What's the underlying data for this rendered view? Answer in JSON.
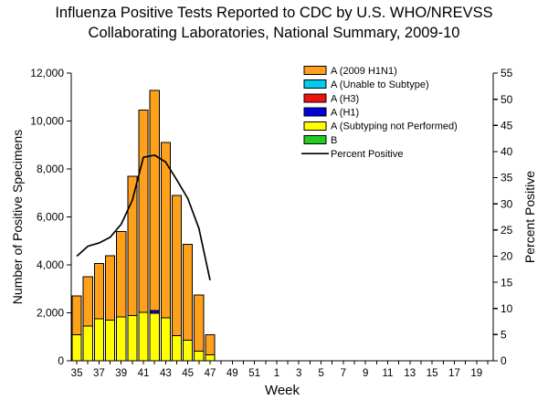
{
  "title_line1": "Influenza Positive Tests Reported to CDC by U.S. WHO/NREVSS",
  "title_line2": "Collaborating Laboratories, National Summary, 2009-10",
  "chart_data": {
    "type": "bar",
    "subtype": "stacked-bars-with-dual-axis-line",
    "categories": [
      "35",
      "36",
      "37",
      "38",
      "39",
      "40",
      "41",
      "42",
      "43",
      "44",
      "45",
      "46",
      "47",
      "48",
      "49",
      "50",
      "51",
      "52",
      "1",
      "2",
      "3",
      "4",
      "5",
      "6",
      "7",
      "8",
      "9",
      "10",
      "11",
      "12",
      "13",
      "14",
      "15",
      "16",
      "17",
      "18",
      "19",
      "20"
    ],
    "x_axis_label": "Week",
    "y_left": {
      "label": "Number of Positive Specimens",
      "min": 0,
      "max": 12000,
      "ticks": [
        "0",
        "2,000",
        "4,000",
        "6,000",
        "8,000",
        "10,000",
        "12,000"
      ]
    },
    "y_right": {
      "label": "Percent Positive",
      "min": 0,
      "max": 55,
      "ticks": [
        "0",
        "5",
        "10",
        "15",
        "20",
        "25",
        "30",
        "35",
        "40",
        "45",
        "50",
        "55"
      ]
    },
    "grid": "off",
    "legend_position": "top-inside-plot",
    "bar_weeks": [
      "35",
      "36",
      "37",
      "38",
      "39",
      "40",
      "41",
      "42",
      "43",
      "44",
      "45",
      "46",
      "47"
    ],
    "stack_order_bottom_to_top": [
      "A (Subtyping not Performed)",
      "B",
      "A (H1)",
      "A (H3)",
      "A (Unable to Subtype)",
      "A (2009 H1N1)"
    ],
    "series": [
      {
        "name": "A (2009 H1N1)",
        "color": "#FFA01A",
        "values": [
          1620,
          2060,
          2300,
          2680,
          3580,
          5810,
          8430,
          9180,
          7310,
          5850,
          4000,
          2350,
          830
        ]
      },
      {
        "name": "A (Unable to Subtype)",
        "color": "#00CCEE",
        "values": [
          0,
          0,
          0,
          0,
          0,
          0,
          0,
          0,
          0,
          0,
          0,
          0,
          0
        ]
      },
      {
        "name": "A (H3)",
        "color": "#EE1111",
        "values": [
          0,
          0,
          0,
          0,
          0,
          0,
          0,
          0,
          0,
          0,
          0,
          0,
          0
        ]
      },
      {
        "name": "A (H1)",
        "color": "#0000DD",
        "values": [
          0,
          0,
          0,
          0,
          0,
          0,
          0,
          120,
          0,
          0,
          0,
          0,
          0
        ]
      },
      {
        "name": "A (Subtyping not Performed)",
        "color": "#FFFF00",
        "values": [
          1080,
          1440,
          1750,
          1700,
          1820,
          1890,
          2020,
          1980,
          1790,
          1050,
          850,
          400,
          250
        ]
      },
      {
        "name": "B",
        "color": "#22CC22",
        "values": [
          0,
          0,
          0,
          0,
          0,
          0,
          0,
          0,
          0,
          0,
          0,
          0,
          0
        ]
      }
    ],
    "bar_totals": [
      2700,
      3500,
      4050,
      4380,
      5400,
      7700,
      10450,
      11280,
      9100,
      6900,
      4850,
      2750,
      1080
    ],
    "line_series": {
      "name": "Percent Positive",
      "color": "#000000",
      "axis": "right",
      "values": [
        20.0,
        21.9,
        22.5,
        23.6,
        26.1,
        30.7,
        38.9,
        39.3,
        38.0,
        34.6,
        31.0,
        25.3,
        15.4
      ]
    },
    "legend": [
      {
        "label": "A (2009 H1N1)",
        "color": "#FFA01A",
        "marker": "rect"
      },
      {
        "label": "A (Unable to Subtype)",
        "color": "#00CCEE",
        "marker": "rect"
      },
      {
        "label": "A (H3)",
        "color": "#EE1111",
        "marker": "rect"
      },
      {
        "label": "A (H1)",
        "color": "#0000DD",
        "marker": "rect"
      },
      {
        "label": "A (Subtyping not Performed)",
        "color": "#FFFF00",
        "marker": "rect"
      },
      {
        "label": "B",
        "color": "#22CC22",
        "marker": "rect"
      },
      {
        "label": "Percent Positive",
        "color": "#000000",
        "marker": "line"
      }
    ]
  }
}
